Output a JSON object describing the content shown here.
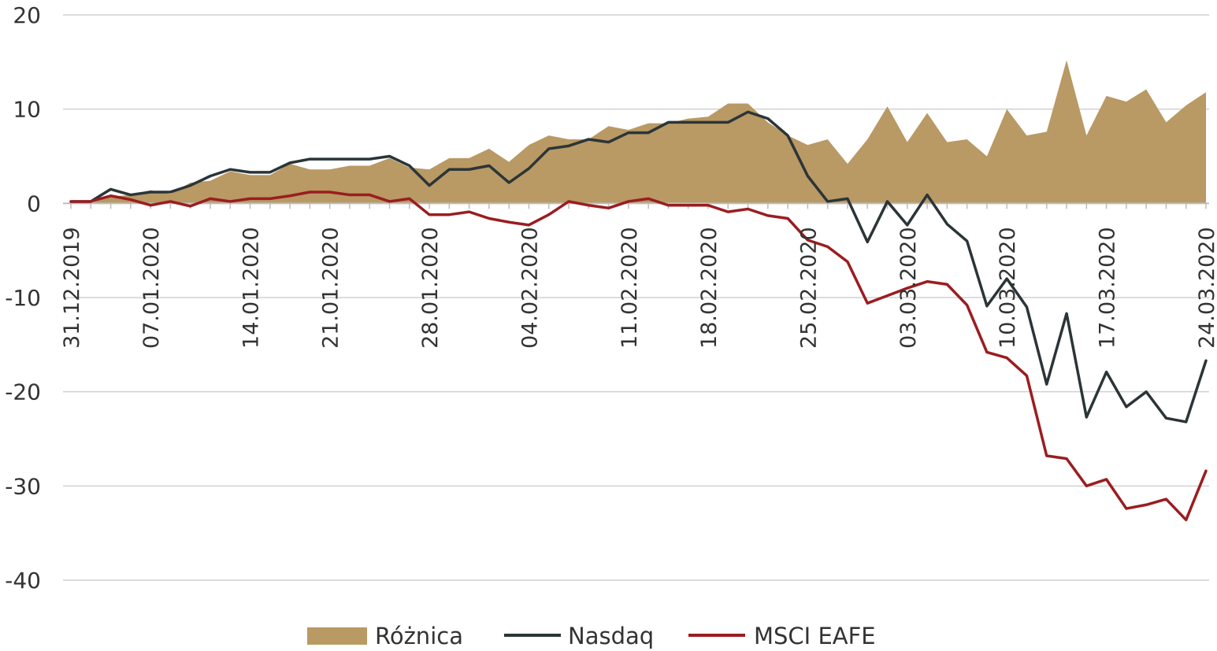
{
  "chart_data": {
    "type": "line",
    "title": "",
    "xlabel": "",
    "ylabel": "",
    "ylim": [
      -40,
      20
    ],
    "yticks": [
      20,
      10,
      0,
      -10,
      -20,
      -30,
      -40
    ],
    "grid": true,
    "legend_position": "bottom",
    "x_tick_labels": [
      "31.12.2019",
      "07.01.2020",
      "14.01.2020",
      "21.01.2020",
      "28.01.2020",
      "04.02.2020",
      "11.02.2020",
      "18.02.2020",
      "25.02.2020",
      "03.03.2020",
      "10.03.2020",
      "17.03.2020",
      "24.03.2020"
    ],
    "x": [
      "31.12.2019",
      "02.01.2020",
      "03.01.2020",
      "06.01.2020",
      "07.01.2020",
      "08.01.2020",
      "09.01.2020",
      "10.01.2020",
      "13.01.2020",
      "14.01.2020",
      "15.01.2020",
      "16.01.2020",
      "17.01.2020",
      "21.01.2020",
      "22.01.2020",
      "23.01.2020",
      "24.01.2020",
      "27.01.2020",
      "28.01.2020",
      "29.01.2020",
      "30.01.2020",
      "31.01.2020",
      "03.02.2020",
      "04.02.2020",
      "05.02.2020",
      "06.02.2020",
      "07.02.2020",
      "10.02.2020",
      "11.02.2020",
      "12.02.2020",
      "13.02.2020",
      "14.02.2020",
      "18.02.2020",
      "19.02.2020",
      "20.02.2020",
      "21.02.2020",
      "24.02.2020",
      "25.02.2020",
      "26.02.2020",
      "27.02.2020",
      "28.02.2020",
      "02.03.2020",
      "03.03.2020",
      "04.03.2020",
      "05.03.2020",
      "06.03.2020",
      "09.03.2020",
      "10.03.2020",
      "11.03.2020",
      "12.03.2020",
      "13.03.2020",
      "16.03.2020",
      "17.03.2020",
      "18.03.2020",
      "19.03.2020",
      "20.03.2020",
      "23.03.2020",
      "24.03.2020"
    ],
    "series": [
      {
        "name": "Różnica",
        "kind": "area",
        "color": "#b99964",
        "values": [
          0.0,
          0.0,
          0.7,
          0.9,
          1.4,
          1.0,
          2.2,
          2.4,
          3.4,
          3.0,
          3.0,
          4.2,
          3.6,
          3.6,
          4.0,
          4.0,
          4.8,
          3.8,
          3.6,
          4.8,
          4.8,
          5.8,
          4.4,
          6.2,
          7.2,
          6.8,
          6.8,
          8.2,
          7.8,
          8.5,
          8.5,
          9.0,
          9.2,
          10.6,
          10.6,
          8.6,
          7.2,
          6.2,
          6.8,
          4.2,
          6.8,
          10.3,
          6.5,
          9.6,
          6.5,
          6.8,
          5.0,
          10.0,
          7.2,
          7.6,
          15.2,
          7.2,
          11.4,
          10.8,
          12.1,
          8.6,
          10.4,
          11.8
        ]
      },
      {
        "name": "Nasdaq",
        "kind": "line",
        "color": "#2b3538",
        "values": [
          0.2,
          0.2,
          1.5,
          0.9,
          1.2,
          1.2,
          1.9,
          2.9,
          3.6,
          3.3,
          3.3,
          4.3,
          4.7,
          4.7,
          4.7,
          4.7,
          5.0,
          4.0,
          1.9,
          3.6,
          3.6,
          4.0,
          2.2,
          3.7,
          5.8,
          6.1,
          6.8,
          6.5,
          7.5,
          7.5,
          8.6,
          8.6,
          8.6,
          8.6,
          9.7,
          9.0,
          7.2,
          2.9,
          0.2,
          0.5,
          -4.1,
          0.2,
          -2.3,
          0.9,
          -2.2,
          -4.0,
          -10.9,
          -8.0,
          -11.0,
          -19.2,
          -11.7,
          -22.7,
          -17.9,
          -21.6,
          -20.0,
          -22.8,
          -23.2,
          -16.7
        ]
      },
      {
        "name": "MSCI EAFE",
        "kind": "line",
        "color": "#9a1d20",
        "values": [
          0.2,
          0.2,
          0.8,
          0.4,
          -0.2,
          0.2,
          -0.3,
          0.5,
          0.2,
          0.5,
          0.5,
          0.8,
          1.2,
          1.2,
          0.9,
          0.9,
          0.2,
          0.5,
          -1.2,
          -1.2,
          -0.9,
          -1.6,
          -2.0,
          -2.3,
          -1.2,
          0.2,
          -0.2,
          -0.5,
          0.2,
          0.5,
          -0.2,
          -0.2,
          -0.2,
          -0.9,
          -0.6,
          -1.3,
          -1.6,
          -3.9,
          -4.6,
          -6.2,
          -10.6,
          -9.8,
          -9.0,
          -8.3,
          -8.6,
          -10.8,
          -15.8,
          -16.4,
          -18.3,
          -26.8,
          -27.1,
          -30.0,
          -29.3,
          -32.4,
          -32.0,
          -31.4,
          -33.6,
          -28.4
        ]
      }
    ]
  }
}
